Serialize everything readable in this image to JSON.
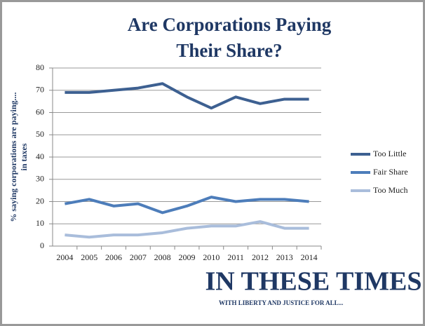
{
  "chart_data": {
    "type": "line",
    "title": [
      "Are Corporations Paying",
      "Their Share?"
    ],
    "ylabel": [
      "% saying corporations are paying....",
      "in taxes"
    ],
    "categories": [
      "2004",
      "2005",
      "2006",
      "2007",
      "2008",
      "2009",
      "2010",
      "2011",
      "2012",
      "2013",
      "2014"
    ],
    "series": [
      {
        "name": "Too Little",
        "color": "#3d6091",
        "values": [
          69,
          69,
          70,
          71,
          73,
          67,
          62,
          67,
          64,
          66,
          66
        ]
      },
      {
        "name": "Fair Share",
        "color": "#4d7dba",
        "values": [
          19,
          21,
          18,
          19,
          15,
          18,
          22,
          20,
          21,
          21,
          20
        ]
      },
      {
        "name": "Too Much",
        "color": "#a9bddb",
        "values": [
          5,
          4,
          5,
          5,
          6,
          8,
          9,
          9,
          11,
          8,
          8
        ]
      }
    ],
    "ylim": [
      0,
      80
    ],
    "yticks": [
      0,
      10,
      20,
      30,
      40,
      50,
      60,
      70,
      80
    ],
    "grid": true,
    "legend": "right"
  },
  "logo": {
    "title": "IN THESE TIMES",
    "tagline": "WITH LIBERTY AND JUSTICE FOR ALL..."
  }
}
